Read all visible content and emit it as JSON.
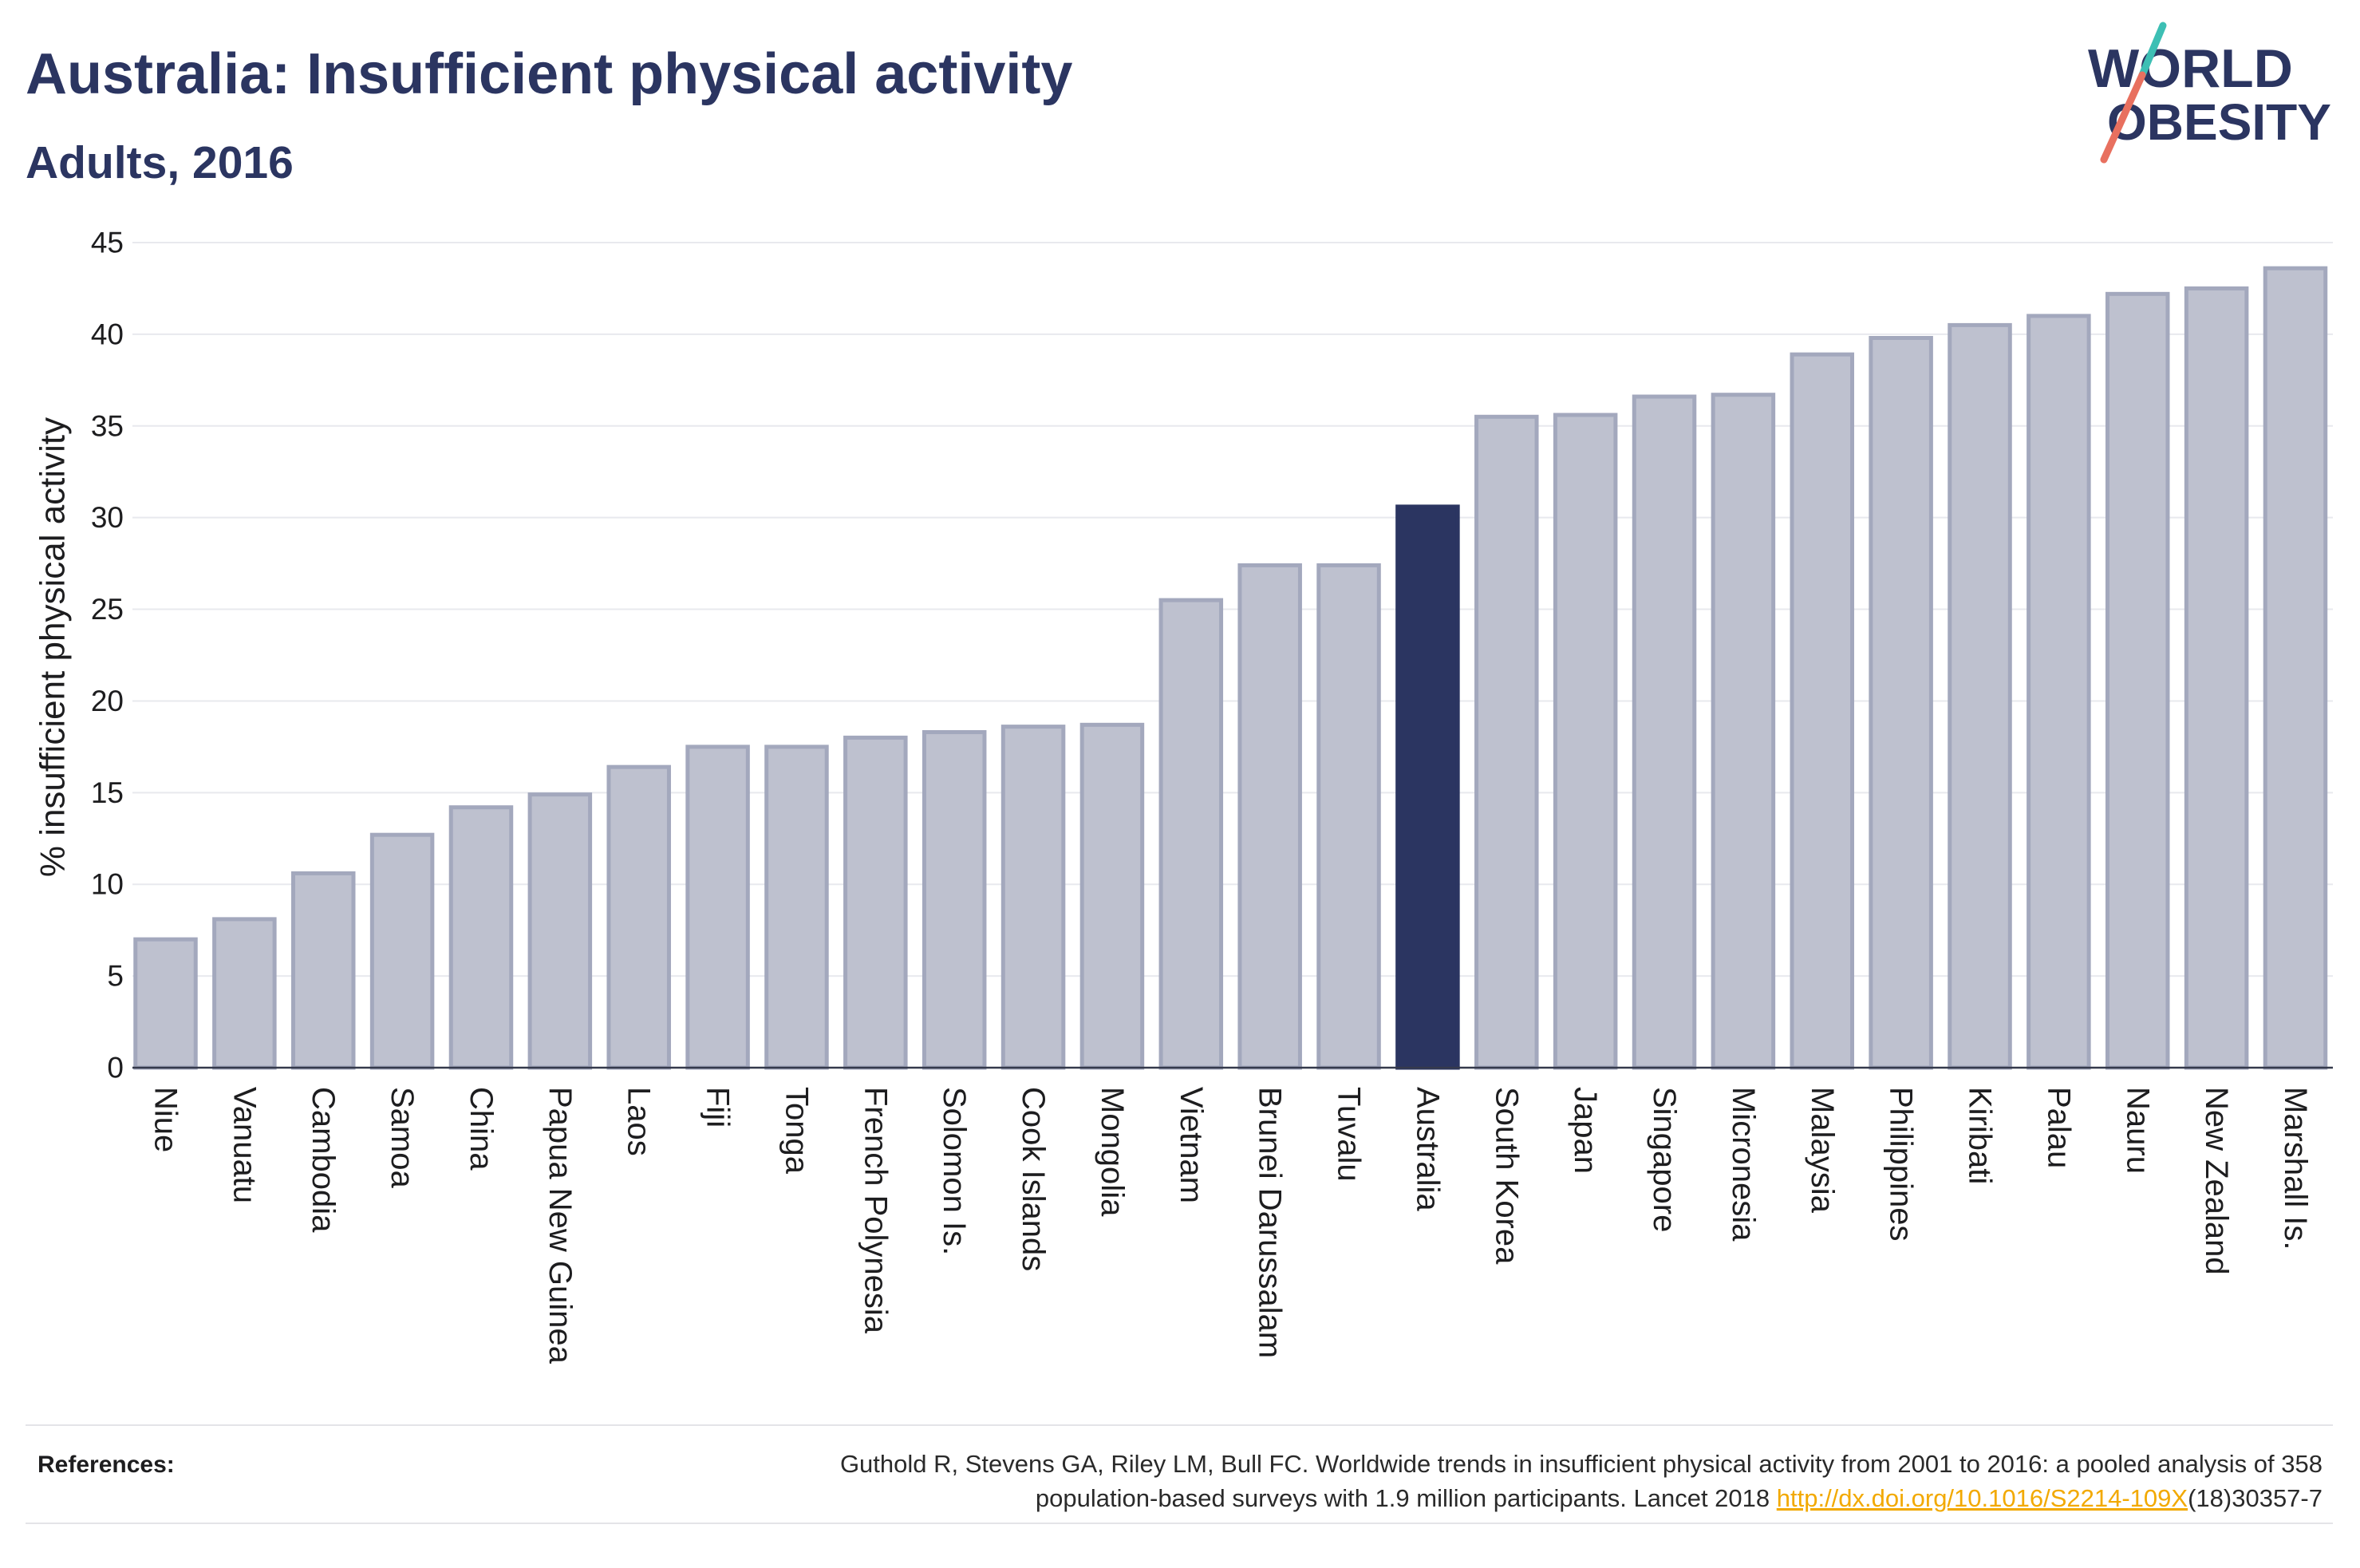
{
  "logo": {
    "line1": "WORLD",
    "line2": "OBESITY"
  },
  "colors": {
    "title": "#2b3561",
    "bar": "#bec1cf",
    "bar_border": "#a3a8bd",
    "highlight": "#2b3561",
    "grid": "#e8e9ee",
    "axis": "#353a4c",
    "link": "#f2a900",
    "logo_teal": "#3dbfb4",
    "logo_coral": "#e8705f"
  },
  "chart_data": {
    "type": "bar",
    "title": "Australia: Insufficient physical activity",
    "subtitle": "Adults, 2016",
    "ylabel": "% insufficient physical activity",
    "ylim": [
      0,
      45
    ],
    "yticks": [
      0,
      5,
      10,
      15,
      20,
      25,
      30,
      35,
      40,
      45
    ],
    "grid": true,
    "highlight": "Australia",
    "categories": [
      "Niue",
      "Vanuatu",
      "Cambodia",
      "Samoa",
      "China",
      "Papua New Guinea",
      "Laos",
      "Fiji",
      "Tonga",
      "French Polynesia",
      "Solomon Is.",
      "Cook Islands",
      "Mongolia",
      "Vietnam",
      "Brunei Darussalam",
      "Tuvalu",
      "Australia",
      "South Korea",
      "Japan",
      "Singapore",
      "Micronesia",
      "Malaysia",
      "Philippines",
      "Kiribati",
      "Palau",
      "Nauru",
      "New Zealand",
      "Marshall Is."
    ],
    "values": [
      7.0,
      8.1,
      10.6,
      12.7,
      14.2,
      14.9,
      16.4,
      17.5,
      17.5,
      18.0,
      18.3,
      18.6,
      18.7,
      25.5,
      27.4,
      27.4,
      30.6,
      35.5,
      35.6,
      36.6,
      36.7,
      38.9,
      39.8,
      40.5,
      41.0,
      42.2,
      42.5,
      43.6
    ]
  },
  "references": {
    "label": "References:",
    "line1": "Guthold R, Stevens GA, Riley LM, Bull FC. Worldwide trends in insufficient physical activity from 2001 to 2016: a pooled analysis of 358",
    "line2_prefix": "population-based surveys with 1.9 million participants. Lancet 2018 ",
    "link": "http://dx.doi.org/10.1016/S2214-109X",
    "line2_suffix": "(18)30357-7"
  }
}
